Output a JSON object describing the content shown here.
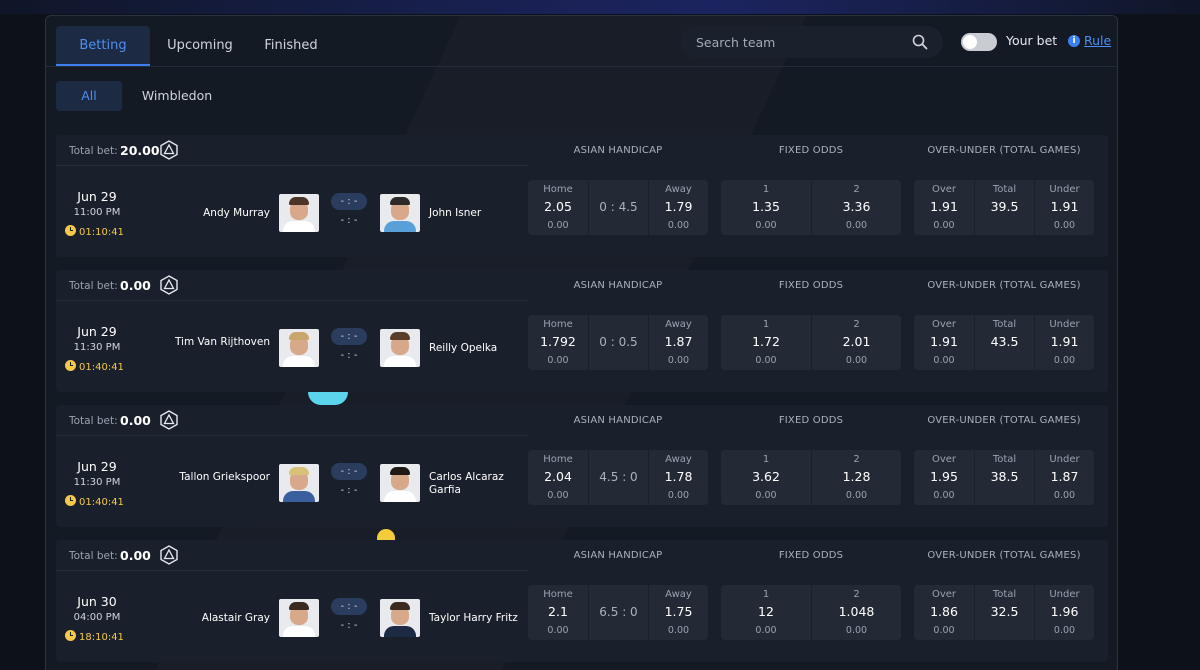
{
  "tabs": [
    {
      "label": "Betting",
      "active": true
    },
    {
      "label": "Upcoming",
      "active": false
    },
    {
      "label": "Finished",
      "active": false
    }
  ],
  "search": {
    "placeholder": "Search team"
  },
  "your_bet_label": "Your bet",
  "rule_label": "Rule",
  "filters": [
    {
      "label": "All",
      "active": true
    },
    {
      "label": "Wimbledon",
      "active": false
    }
  ],
  "labels": {
    "total_bet": "Total bet:",
    "asian_handicap": "ASIAN HANDICAP",
    "fixed_odds": "FIXED ODDS",
    "over_under": "OVER-UNDER (TOTAL GAMES)",
    "home": "Home",
    "away": "Away",
    "one": "1",
    "two": "2",
    "over": "Over",
    "total": "Total",
    "under": "Under",
    "score_placeholder": "- : -"
  },
  "matches": [
    {
      "total_bet": "20.00",
      "date": "Jun 29",
      "time": "11:00 PM",
      "countdown": "01:10:41",
      "home": "Andy Murray",
      "away": "John Isner",
      "ah": {
        "home": "2.05",
        "home_amt": "0.00",
        "line": "0 : 4.5",
        "away": "1.79",
        "away_amt": "0.00"
      },
      "fo": {
        "one": "1.35",
        "one_amt": "0.00",
        "two": "3.36",
        "two_amt": "0.00"
      },
      "ou": {
        "over": "1.91",
        "over_amt": "0.00",
        "total": "39.5",
        "under": "1.91",
        "under_amt": "0.00"
      }
    },
    {
      "total_bet": "0.00",
      "date": "Jun 29",
      "time": "11:30 PM",
      "countdown": "01:40:41",
      "home": "Tim Van Rijthoven",
      "away": "Reilly Opelka",
      "ah": {
        "home": "1.792",
        "home_amt": "0.00",
        "line": "0 : 0.5",
        "away": "1.87",
        "away_amt": "0.00"
      },
      "fo": {
        "one": "1.72",
        "one_amt": "0.00",
        "two": "2.01",
        "two_amt": "0.00"
      },
      "ou": {
        "over": "1.91",
        "over_amt": "0.00",
        "total": "43.5",
        "under": "1.91",
        "under_amt": "0.00"
      }
    },
    {
      "total_bet": "0.00",
      "date": "Jun 29",
      "time": "11:30 PM",
      "countdown": "01:40:41",
      "home": "Tallon Griekspoor",
      "away": "Carlos Alcaraz Garfia",
      "ah": {
        "home": "2.04",
        "home_amt": "0.00",
        "line": "4.5 : 0",
        "away": "1.78",
        "away_amt": "0.00"
      },
      "fo": {
        "one": "3.62",
        "one_amt": "0.00",
        "two": "1.28",
        "two_amt": "0.00"
      },
      "ou": {
        "over": "1.95",
        "over_amt": "0.00",
        "total": "38.5",
        "under": "1.87",
        "under_amt": "0.00"
      }
    },
    {
      "total_bet": "0.00",
      "date": "Jun 30",
      "time": "04:00 PM",
      "countdown": "18:10:41",
      "home": "Alastair Gray",
      "away": "Taylor Harry Fritz",
      "ah": {
        "home": "2.1",
        "home_amt": "0.00",
        "line": "6.5 : 0",
        "away": "1.75",
        "away_amt": "0.00"
      },
      "fo": {
        "one": "12",
        "one_amt": "0.00",
        "two": "1.048",
        "two_amt": "0.00"
      },
      "ou": {
        "over": "1.86",
        "over_amt": "0.00",
        "total": "32.5",
        "under": "1.96",
        "under_amt": "0.00"
      }
    }
  ],
  "colors": {
    "accent": "#3b7ff0",
    "countdown": "#f5c84a"
  }
}
